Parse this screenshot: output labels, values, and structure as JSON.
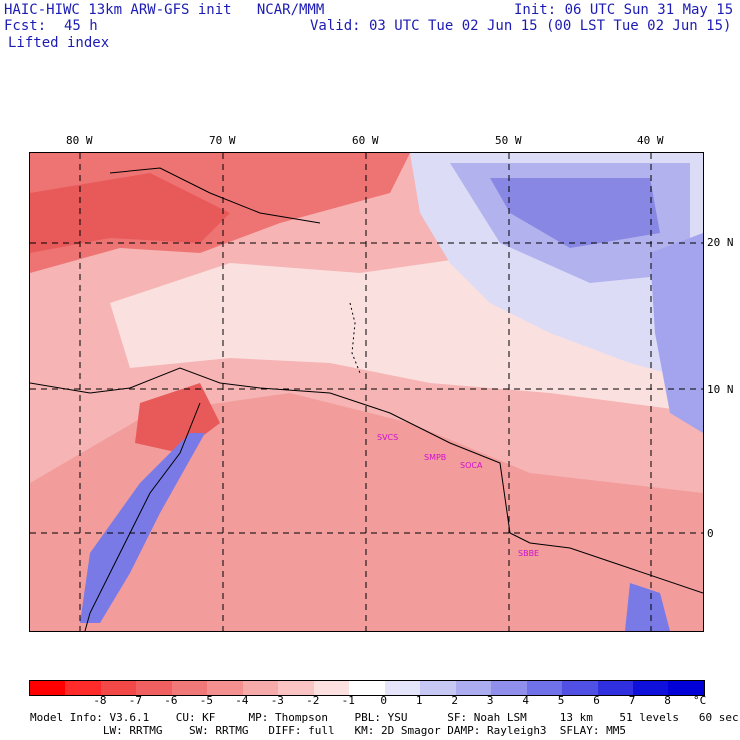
{
  "header": {
    "title_left": "HAIC-HIWC 13km ARW-GFS init   NCAR/MMM",
    "init": "Init: 06 UTC Sun 31 May 15",
    "fcst_label": "Fcst:",
    "fcst_value": "45 h",
    "valid": "Valid: 03 UTC Tue 02 Jun 15 (00 LST Tue 02 Jun 15)",
    "field": "Lifted index"
  },
  "map": {
    "lon_labels": [
      "80 W",
      "70 W",
      "60 W",
      "50 W",
      "40 W"
    ],
    "lat_labels": [
      "20 N",
      "10 N",
      "0"
    ],
    "stations": [
      "SVCS",
      "SMPB",
      "SOCA",
      "SBBE"
    ]
  },
  "colorbar": {
    "ticks": [
      "-8",
      "-7",
      "-6",
      "-5",
      "-4",
      "-3",
      "-2",
      "-1",
      "0",
      "1",
      "2",
      "3",
      "4",
      "5",
      "6",
      "7",
      "8"
    ],
    "unit": "°C",
    "colors": [
      "#ff0000",
      "#ff2a2a",
      "#f24848",
      "#f06060",
      "#f07878",
      "#f49090",
      "#f7aaaa",
      "#fac4c4",
      "#fde0e0",
      "#ffffff",
      "#e4e4fa",
      "#c8c8f4",
      "#acacf0",
      "#9090ec",
      "#7070e8",
      "#5050e4",
      "#3030e0",
      "#1010dc",
      "#0000d8"
    ]
  },
  "model_info": {
    "line1": "Model Info: V3.6.1    CU: KF     MP: Thompson    PBL: YSU      SF: Noah LSM     13 km    51 levels   60 sec",
    "line2": "           LW: RRTMG    SW: RRTMG   DIFF: full   KM: 2D Smagor DAMP: Rayleigh3  SFLAY: MM5"
  }
}
